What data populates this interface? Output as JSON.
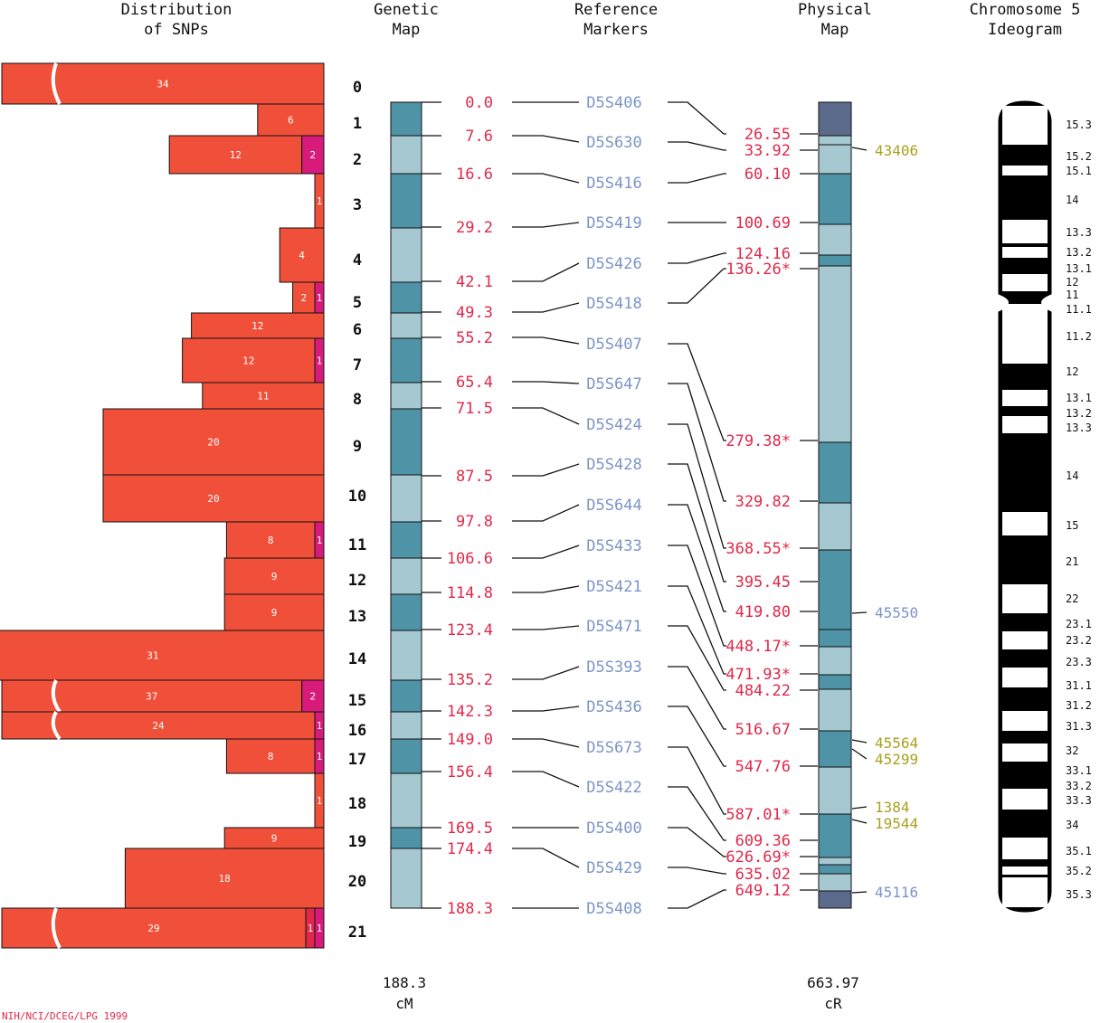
{
  "headers": {
    "snp": [
      "Distribution",
      "of SNPs"
    ],
    "genetic": [
      "Genetic",
      "Map"
    ],
    "reference": [
      "Reference",
      "Markers"
    ],
    "physical": [
      "Physical",
      "Map"
    ],
    "ideogram": [
      "Chromosome 5",
      "Ideogram"
    ]
  },
  "snp_bins": [
    {
      "bin": "0",
      "segments": [
        {
          "count": "34",
          "color": "#f0503a"
        }
      ],
      "broken": true
    },
    {
      "bin": "1",
      "segments": [
        {
          "count": "6",
          "color": "#f0503a"
        }
      ]
    },
    {
      "bin": "2",
      "segments": [
        {
          "count": "12",
          "color": "#f0503a"
        },
        {
          "count": "2",
          "color": "#d81b7a"
        }
      ]
    },
    {
      "bin": "3",
      "segments": [
        {
          "count": "1",
          "color": "#f0503a"
        }
      ]
    },
    {
      "bin": "4",
      "segments": [
        {
          "count": "4",
          "color": "#f0503a"
        }
      ]
    },
    {
      "bin": "5",
      "segments": [
        {
          "count": "2",
          "color": "#f0503a"
        },
        {
          "count": "1",
          "color": "#d81b7a"
        }
      ]
    },
    {
      "bin": "6",
      "segments": [
        {
          "count": "12",
          "color": "#f0503a"
        }
      ]
    },
    {
      "bin": "7",
      "segments": [
        {
          "count": "12",
          "color": "#f0503a"
        },
        {
          "count": "1",
          "color": "#d81b7a"
        }
      ]
    },
    {
      "bin": "8",
      "segments": [
        {
          "count": "11",
          "color": "#f0503a"
        }
      ]
    },
    {
      "bin": "9",
      "segments": [
        {
          "count": "20",
          "color": "#f0503a"
        }
      ]
    },
    {
      "bin": "10",
      "segments": [
        {
          "count": "20",
          "color": "#f0503a"
        }
      ]
    },
    {
      "bin": "11",
      "segments": [
        {
          "count": "8",
          "color": "#f0503a"
        },
        {
          "count": "1",
          "color": "#d81b7a"
        }
      ]
    },
    {
      "bin": "12",
      "segments": [
        {
          "count": "9",
          "color": "#f0503a"
        }
      ]
    },
    {
      "bin": "13",
      "segments": [
        {
          "count": "9",
          "color": "#f0503a"
        }
      ]
    },
    {
      "bin": "14",
      "segments": [
        {
          "count": "31",
          "color": "#f0503a"
        }
      ]
    },
    {
      "bin": "15",
      "segments": [
        {
          "count": "37",
          "color": "#f0503a"
        },
        {
          "count": "2",
          "color": "#d81b7a"
        }
      ],
      "broken": true
    },
    {
      "bin": "16",
      "segments": [
        {
          "count": "24",
          "color": "#f0503a"
        },
        {
          "count": "1",
          "color": "#d81b7a"
        }
      ],
      "broken": true
    },
    {
      "bin": "17",
      "segments": [
        {
          "count": "8",
          "color": "#f0503a"
        },
        {
          "count": "1",
          "color": "#d81b7a"
        }
      ]
    },
    {
      "bin": "18",
      "segments": [
        {
          "count": "1",
          "color": "#f0503a"
        }
      ]
    },
    {
      "bin": "19",
      "segments": [
        {
          "count": "9",
          "color": "#f0503a"
        }
      ]
    },
    {
      "bin": "20",
      "segments": [
        {
          "count": "18",
          "color": "#f0503a"
        }
      ]
    },
    {
      "bin": "21",
      "segments": [
        {
          "count": "29",
          "color": "#f0503a"
        },
        {
          "count": "1",
          "color": "#e0284a"
        },
        {
          "count": "1",
          "color": "#d81b7a"
        }
      ],
      "broken": true
    }
  ],
  "genetic_positions": [
    "0.0",
    "7.6",
    "16.6",
    "29.2",
    "42.1",
    "49.3",
    "55.2",
    "65.4",
    "71.5",
    "87.5",
    "97.8",
    "106.6",
    "114.8",
    "123.4",
    "135.2",
    "142.3",
    "149.0",
    "156.4",
    "169.5",
    "174.4",
    "188.3"
  ],
  "reference_markers": [
    "D5S406",
    "D5S630",
    "D5S416",
    "D5S419",
    "D5S426",
    "D5S418",
    "D5S407",
    "D5S647",
    "D5S424",
    "D5S428",
    "D5S644",
    "D5S433",
    "D5S421",
    "D5S471",
    "D5S393",
    "D5S436",
    "D5S673",
    "D5S422",
    "D5S400",
    "D5S429",
    "D5S408"
  ],
  "physical_positions": [
    "26.55",
    "33.92",
    "60.10",
    "100.69",
    "124.16",
    "136.26*",
    "279.38*",
    "329.82",
    "368.55*",
    "395.45",
    "419.80",
    "448.17*",
    "471.93*",
    "484.22",
    "516.67",
    "547.76",
    "587.01*",
    "609.36",
    "626.69*",
    "635.02",
    "649.12"
  ],
  "physical_extras": [
    {
      "label": "43406",
      "color": "#a8a21e"
    },
    {
      "label": "45550",
      "color": "#7b95c9"
    },
    {
      "label": "45564",
      "color": "#a8a21e"
    },
    {
      "label": "45299",
      "color": "#a8a21e"
    },
    {
      "label": "1384",
      "color": "#a8a21e"
    },
    {
      "label": "19544",
      "color": "#a8a21e"
    },
    {
      "label": "45116",
      "color": "#7b95c9"
    }
  ],
  "ideogram_bands": [
    "15.3",
    "15.2",
    "15.1",
    "14",
    "13.3",
    "13.2",
    "13.1",
    "12",
    "11",
    "11.1",
    "11.2",
    "12",
    "13.1",
    "13.2",
    "13.3",
    "14",
    "15",
    "21",
    "22",
    "23.1",
    "23.2",
    "23.3",
    "31.1",
    "31.2",
    "31.3",
    "32",
    "33.1",
    "33.2",
    "33.3",
    "34",
    "35.1",
    "35.2",
    "35.3"
  ],
  "totals": {
    "genetic_value": "188.3",
    "genetic_unit": "cM",
    "physical_value": "663.97",
    "physical_unit": "cR"
  },
  "credit": "NIH/NCI/DCEG/LPG 1999",
  "colors": {
    "snp_bar": "#f0503a",
    "snp_alt": "#d81b7a",
    "map_dark": "#4f93a6",
    "map_light": "#a6c8d0",
    "map_end": "#5c6b8c",
    "position_text": "#e0284a",
    "marker_text": "#7b95c9"
  }
}
